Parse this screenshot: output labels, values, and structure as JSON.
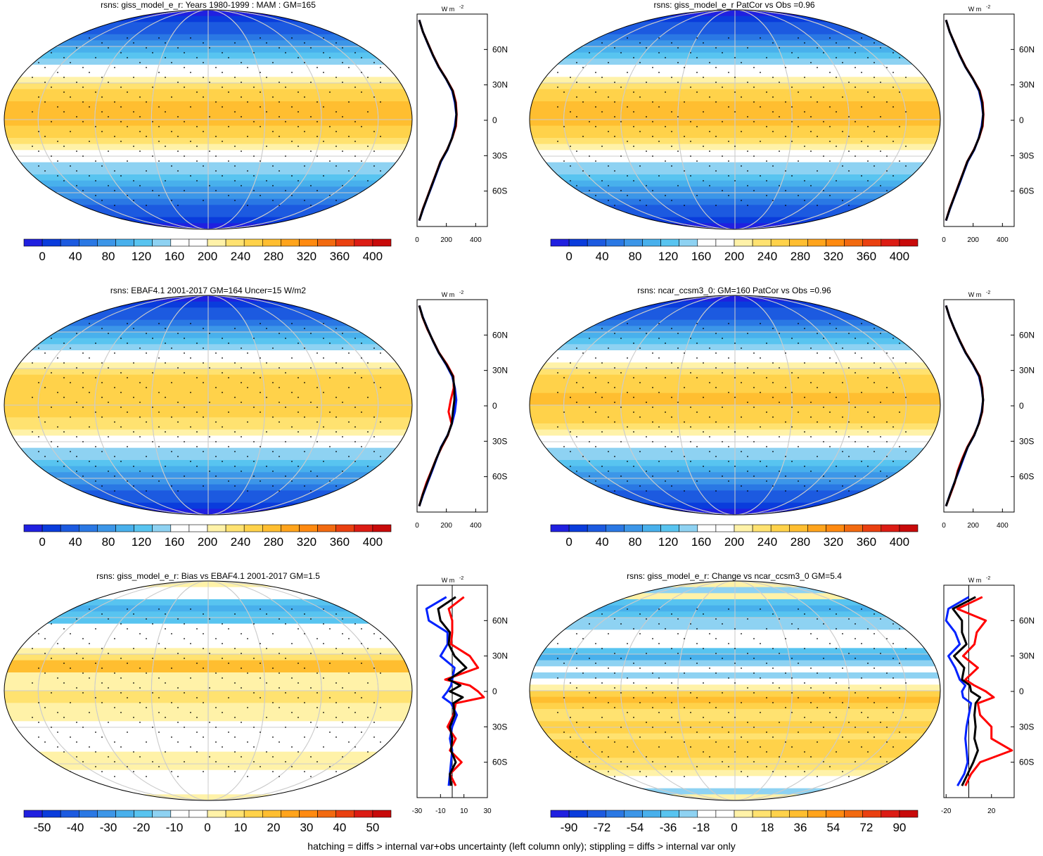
{
  "footer_note": "hatching = diffs > internal var+obs uncertainty (left column only); stippling = diffs > internal var only",
  "palettes": {
    "rsns": [
      "#2020e0",
      "#0a3cdc",
      "#1c5ae0",
      "#2a78e4",
      "#3c96e8",
      "#48b0ec",
      "#58c4f0",
      "#8ed2f2",
      "#ffffff",
      "#ffffff",
      "#fff2a8",
      "#ffe270",
      "#ffd24a",
      "#ffbe30",
      "#ffa41c",
      "#ff8a10",
      "#f26a10",
      "#ea4010",
      "#dc1c14",
      "#c80a0a"
    ],
    "diff": [
      "#2020e0",
      "#0a3cdc",
      "#1c5ae0",
      "#2a78e4",
      "#3c96e8",
      "#48b0ec",
      "#58c4f0",
      "#8ed2f2",
      "#ffffff",
      "#ffffff",
      "#fff2a8",
      "#ffe270",
      "#ffd24a",
      "#ffbe30",
      "#ffa41c",
      "#ff8a10",
      "#f26a10",
      "#ea4010",
      "#dc1c14",
      "#c80a0a"
    ]
  },
  "profile_colors": {
    "model": "#ff0000",
    "obs": "#0022ff",
    "mean": "#000000"
  },
  "chart_data": [
    {
      "type": "heatmap",
      "title": "rsns: giss_model_e_r: Years 1980-1999 : MAM : GM=165",
      "colorbar": {
        "ticks": [
          "0",
          "40",
          "80",
          "120",
          "160",
          "200",
          "240",
          "280",
          "320",
          "360",
          "400"
        ],
        "palette": "rsns"
      },
      "profile": {
        "unit": "W m",
        "unit_sup": "-2",
        "xticks": [
          "0",
          "200",
          "400"
        ],
        "xlim": [
          0,
          480
        ],
        "ylabels": [
          "60N",
          "30N",
          "0",
          "30S",
          "60S"
        ],
        "lat": [
          -85,
          -75,
          -65,
          -55,
          -45,
          -35,
          -25,
          -15,
          -5,
          5,
          15,
          25,
          35,
          45,
          55,
          65,
          75,
          85
        ],
        "series": [
          {
            "color": "model",
            "values": [
              15,
              40,
              70,
              100,
              130,
              160,
              205,
              240,
              265,
              270,
              265,
              245,
              200,
              150,
              110,
              75,
              40,
              15
            ]
          },
          {
            "color": "obs",
            "values": [
              15,
              42,
              72,
              103,
              133,
              163,
              208,
              238,
              258,
              268,
              258,
              240,
              198,
              148,
              108,
              73,
              40,
              15
            ]
          },
          {
            "color": "mean",
            "values": [
              15,
              41,
              71,
              101,
              131,
              161,
              206,
              239,
              262,
              269,
              262,
              243,
              199,
              149,
              109,
              74,
              40,
              15
            ]
          }
        ]
      }
    },
    {
      "type": "heatmap",
      "title": "rsns: giss_model_e_r PatCor vs Obs =0.96",
      "colorbar": {
        "ticks": [
          "0",
          "40",
          "80",
          "120",
          "160",
          "200",
          "240",
          "280",
          "320",
          "360",
          "400"
        ],
        "palette": "rsns"
      },
      "profile": {
        "unit": "W m",
        "unit_sup": "-2",
        "xticks": [
          "0",
          "200",
          "400"
        ],
        "xlim": [
          0,
          480
        ],
        "ylabels": [
          "60N",
          "30N",
          "0",
          "30S",
          "60S"
        ],
        "lat": [
          -85,
          -75,
          -65,
          -55,
          -45,
          -35,
          -25,
          -15,
          -5,
          5,
          15,
          25,
          35,
          45,
          55,
          65,
          75,
          85
        ],
        "series": [
          {
            "color": "model",
            "values": [
              15,
              40,
              70,
              100,
              130,
              160,
              205,
              240,
              265,
              270,
              265,
              245,
              200,
              150,
              110,
              75,
              40,
              15
            ]
          },
          {
            "color": "obs",
            "values": [
              15,
              42,
              72,
              103,
              133,
              163,
              208,
              238,
              258,
              268,
              258,
              240,
              198,
              148,
              108,
              73,
              40,
              15
            ]
          },
          {
            "color": "mean",
            "values": [
              15,
              41,
              71,
              101,
              131,
              161,
              206,
              239,
              262,
              269,
              262,
              243,
              199,
              149,
              109,
              74,
              40,
              15
            ]
          }
        ]
      }
    },
    {
      "type": "heatmap",
      "title": "rsns: EBAF4.1 2001-2017 GM=164 Uncer=15 W/m2",
      "colorbar": {
        "ticks": [
          "0",
          "40",
          "80",
          "120",
          "160",
          "200",
          "240",
          "280",
          "320",
          "360",
          "400"
        ],
        "palette": "rsns"
      },
      "profile": {
        "unit": "W m",
        "unit_sup": "-2",
        "xticks": [
          "0",
          "200",
          "400"
        ],
        "xlim": [
          0,
          480
        ],
        "ylabels": [
          "60N",
          "30N",
          "0",
          "30S",
          "60S"
        ],
        "lat": [
          -85,
          -75,
          -65,
          -55,
          -45,
          -35,
          -25,
          -15,
          -5,
          5,
          15,
          25,
          35,
          45,
          55,
          65,
          75,
          85
        ],
        "series": [
          {
            "color": "model",
            "values": [
              15,
              38,
              65,
              98,
              130,
              168,
              210,
              235,
              215,
              230,
              250,
              248,
              205,
              150,
              110,
              70,
              38,
              15
            ]
          },
          {
            "color": "obs",
            "values": [
              15,
              42,
              72,
              103,
              133,
              163,
              208,
              238,
              258,
              268,
              258,
              240,
              198,
              148,
              108,
              73,
              40,
              15
            ]
          },
          {
            "color": "mean",
            "values": [
              15,
              40,
              69,
              100,
              131,
              165,
              209,
              237,
              245,
              255,
              255,
              245,
              201,
              149,
              109,
              72,
              39,
              15
            ]
          }
        ]
      }
    },
    {
      "type": "heatmap",
      "title": "rsns: ncar_ccsm3_0: GM=160 PatCor vs Obs =0.96",
      "colorbar": {
        "ticks": [
          "0",
          "40",
          "80",
          "120",
          "160",
          "200",
          "240",
          "280",
          "320",
          "360",
          "400"
        ],
        "palette": "rsns"
      },
      "profile": {
        "unit": "W m",
        "unit_sup": "-2",
        "xticks": [
          "0",
          "200",
          "400"
        ],
        "xlim": [
          0,
          480
        ],
        "ylabels": [
          "60N",
          "30N",
          "0",
          "30S",
          "60S"
        ],
        "lat": [
          -85,
          -75,
          -65,
          -55,
          -45,
          -35,
          -25,
          -15,
          -5,
          5,
          15,
          25,
          35,
          45,
          55,
          65,
          75,
          85
        ],
        "series": [
          {
            "color": "model",
            "values": [
              15,
              45,
              75,
              95,
              125,
              160,
              205,
              240,
              262,
              268,
              262,
              245,
              200,
              150,
              110,
              72,
              40,
              15
            ]
          },
          {
            "color": "obs",
            "values": [
              15,
              42,
              72,
              103,
              133,
              163,
              208,
              238,
              258,
              268,
              258,
              240,
              198,
              148,
              108,
              73,
              40,
              15
            ]
          },
          {
            "color": "mean",
            "values": [
              15,
              43,
              73,
              99,
              129,
              162,
              207,
              239,
              260,
              268,
              260,
              243,
              199,
              149,
              109,
              73,
              40,
              15
            ]
          }
        ]
      }
    },
    {
      "type": "heatmap",
      "title": "rsns: giss_model_e_r: Bias vs EBAF4.1 2001-2017 GM=1.5",
      "colorbar": {
        "ticks": [
          "-50",
          "-40",
          "-30",
          "-20",
          "-10",
          "0",
          "10",
          "20",
          "30",
          "40",
          "50"
        ],
        "palette": "diff"
      },
      "profile": {
        "unit": "W m",
        "unit_sup": "-2",
        "xticks": [
          "-30",
          "-10",
          "10",
          "30"
        ],
        "xlim": [
          -30,
          30
        ],
        "ylabels": [
          "60N",
          "30N",
          "0",
          "30S",
          "60S"
        ],
        "lat": [
          -80,
          -70,
          -60,
          -50,
          -40,
          -30,
          -20,
          -10,
          -5,
          0,
          5,
          10,
          20,
          30,
          40,
          50,
          60,
          70,
          80
        ],
        "series": [
          {
            "color": "model",
            "values": [
              3,
              -2,
              8,
              -2,
              3,
              -4,
              1,
              3,
              27,
              22,
              15,
              -6,
              22,
              15,
              -1,
              0,
              0,
              -3,
              10
            ]
          },
          {
            "color": "obs",
            "values": [
              -3,
              -2,
              -1,
              0,
              -2,
              0,
              4,
              -1,
              -8,
              -4,
              -1,
              0,
              2,
              -10,
              -4,
              -4,
              -20,
              -22,
              -5
            ]
          },
          {
            "color": "mean",
            "values": [
              -1,
              -2,
              3,
              -1,
              0,
              -2,
              2,
              1,
              9,
              -2,
              7,
              -3,
              12,
              2,
              -3,
              -2,
              -10,
              -12,
              3
            ]
          }
        ]
      }
    },
    {
      "type": "heatmap",
      "title": "rsns: giss_model_e_r: Change vs ncar_ccsm3_0 GM=5.4",
      "colorbar": {
        "ticks": [
          "-90",
          "-72",
          "-54",
          "-36",
          "-18",
          "0",
          "18",
          "36",
          "54",
          "72",
          "90"
        ],
        "palette": "diff"
      },
      "profile": {
        "unit": "W m",
        "unit_sup": "-2",
        "xticks": [
          "-20",
          "20"
        ],
        "xlim": [
          -22,
          40
        ],
        "ylabels": [
          "60N",
          "30N",
          "0",
          "30S",
          "60S"
        ],
        "lat": [
          -80,
          -70,
          -60,
          -50,
          -40,
          -30,
          -20,
          -10,
          -5,
          0,
          5,
          10,
          20,
          30,
          40,
          50,
          60,
          70,
          80
        ],
        "series": [
          {
            "color": "model",
            "values": [
              -3,
              2,
              10,
              38,
              20,
              20,
              10,
              8,
              22,
              15,
              5,
              -3,
              8,
              -5,
              5,
              7,
              15,
              -10,
              12
            ]
          },
          {
            "color": "obs",
            "values": [
              -10,
              -4,
              -1,
              -2,
              -3,
              -2,
              0,
              2,
              -5,
              -6,
              -3,
              -8,
              -12,
              -18,
              -8,
              -12,
              -20,
              -18,
              0
            ]
          },
          {
            "color": "mean",
            "values": [
              -6,
              -1,
              4,
              8,
              5,
              6,
              5,
              6,
              10,
              2,
              1,
              -6,
              -4,
              -13,
              -2,
              -6,
              -6,
              -14,
              6
            ]
          }
        ]
      }
    }
  ]
}
